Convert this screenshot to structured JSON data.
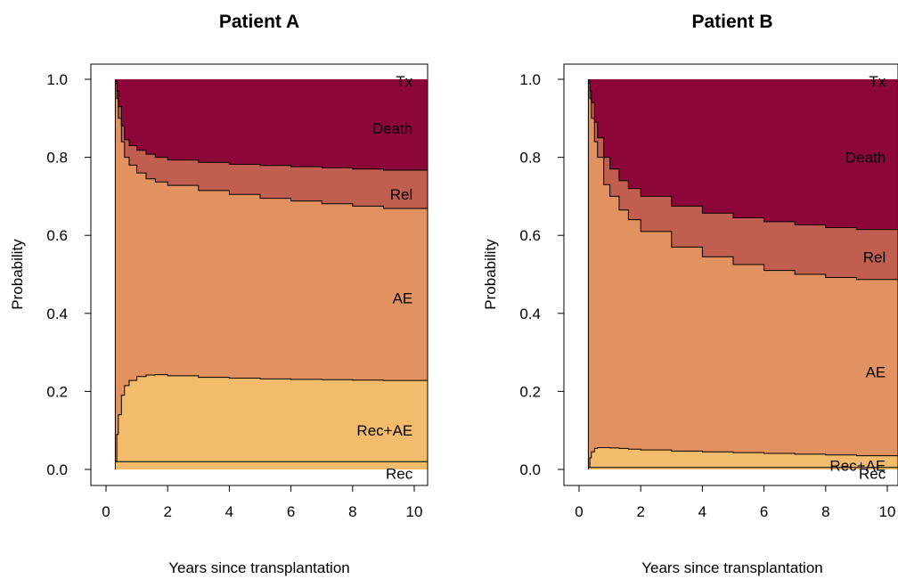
{
  "chart_data": [
    {
      "type": "area",
      "title": "Patient A",
      "xlabel": "Years since transplantation",
      "ylabel": "Probability",
      "xlim": [
        0,
        10.4
      ],
      "ylim": [
        0,
        1
      ],
      "xticks": [
        "0",
        "2",
        "4",
        "6",
        "8",
        "10"
      ],
      "yticks": [
        "0.0",
        "0.2",
        "0.4",
        "0.6",
        "0.8",
        "1.0"
      ],
      "start_x": 0.3,
      "x": [
        0.3,
        0.35,
        0.4,
        0.5,
        0.6,
        0.75,
        1.0,
        1.3,
        1.6,
        2.0,
        3.0,
        4.0,
        5.0,
        6.0,
        7.0,
        8.0,
        9.0,
        10.4
      ],
      "cumulative_boundaries": [
        {
          "name": "Rec",
          "values": [
            0.02,
            0.02,
            0.02,
            0.02,
            0.02,
            0.02,
            0.02,
            0.02,
            0.02,
            0.02,
            0.02,
            0.02,
            0.02,
            0.02,
            0.02,
            0.02,
            0.02,
            0.02
          ]
        },
        {
          "name": "Rec+AE",
          "values": [
            0.02,
            0.09,
            0.14,
            0.19,
            0.215,
            0.228,
            0.238,
            0.242,
            0.243,
            0.24,
            0.236,
            0.234,
            0.232,
            0.231,
            0.23,
            0.229,
            0.228,
            0.226
          ]
        },
        {
          "name": "AE",
          "values": [
            0.99,
            0.95,
            0.9,
            0.84,
            0.8,
            0.78,
            0.76,
            0.745,
            0.737,
            0.728,
            0.715,
            0.705,
            0.695,
            0.688,
            0.681,
            0.675,
            0.669,
            0.662
          ]
        },
        {
          "name": "Rel",
          "values": [
            0.995,
            0.97,
            0.93,
            0.88,
            0.845,
            0.83,
            0.818,
            0.808,
            0.8,
            0.793,
            0.787,
            0.782,
            0.779,
            0.776,
            0.773,
            0.77,
            0.767,
            0.763
          ]
        },
        {
          "name": "Death",
          "values": [
            1.0,
            1.0,
            1.0,
            1.0,
            1.0,
            1.0,
            1.0,
            1.0,
            1.0,
            1.0,
            1.0,
            1.0,
            1.0,
            1.0,
            1.0,
            1.0,
            1.0,
            1.0
          ]
        }
      ],
      "state_labels": [
        {
          "text": "Tx",
          "x": 9.95,
          "y": 0.995
        },
        {
          "text": "Death",
          "x": 9.95,
          "y": 0.875
        },
        {
          "text": "Rel",
          "x": 9.95,
          "y": 0.705
        },
        {
          "text": "AE",
          "x": 9.95,
          "y": 0.44
        },
        {
          "text": "Rec+AE",
          "x": 9.95,
          "y": 0.1
        },
        {
          "text": "Rec",
          "x": 9.95,
          "y": -0.01
        }
      ],
      "colors": {
        "Rec": "#f3bc6c",
        "Rec+AE": "#f3bc6c",
        "AE": "#e19260",
        "Rel": "#c05e50",
        "Death": "#8c0639",
        "Tx": "#8c0639"
      }
    },
    {
      "type": "area",
      "title": "Patient B",
      "xlabel": "Years since transplantation",
      "ylabel": "Probability",
      "xlim": [
        0,
        10.4
      ],
      "ylim": [
        0,
        1
      ],
      "xticks": [
        "0",
        "2",
        "4",
        "6",
        "8",
        "10"
      ],
      "yticks": [
        "0.0",
        "0.2",
        "0.4",
        "0.6",
        "0.8",
        "1.0"
      ],
      "start_x": 0.3,
      "x": [
        0.3,
        0.35,
        0.4,
        0.5,
        0.6,
        0.8,
        1.0,
        1.3,
        1.6,
        2.0,
        3.0,
        4.0,
        5.0,
        6.0,
        7.0,
        8.0,
        9.0,
        10.4
      ],
      "cumulative_boundaries": [
        {
          "name": "Rec",
          "values": [
            0.005,
            0.005,
            0.005,
            0.005,
            0.005,
            0.005,
            0.005,
            0.005,
            0.005,
            0.005,
            0.005,
            0.005,
            0.005,
            0.005,
            0.005,
            0.005,
            0.005,
            0.005
          ]
        },
        {
          "name": "Rec+AE",
          "values": [
            0.005,
            0.03,
            0.045,
            0.054,
            0.056,
            0.056,
            0.055,
            0.054,
            0.052,
            0.05,
            0.047,
            0.045,
            0.043,
            0.041,
            0.039,
            0.037,
            0.035,
            0.033
          ]
        },
        {
          "name": "AE",
          "values": [
            0.99,
            0.95,
            0.9,
            0.84,
            0.8,
            0.73,
            0.7,
            0.665,
            0.64,
            0.61,
            0.57,
            0.545,
            0.525,
            0.51,
            0.5,
            0.492,
            0.487,
            0.48
          ]
        },
        {
          "name": "Rel",
          "values": [
            0.995,
            0.97,
            0.94,
            0.89,
            0.85,
            0.8,
            0.77,
            0.74,
            0.72,
            0.7,
            0.675,
            0.657,
            0.645,
            0.635,
            0.627,
            0.62,
            0.615,
            0.61
          ]
        },
        {
          "name": "Death",
          "values": [
            1.0,
            1.0,
            1.0,
            1.0,
            1.0,
            1.0,
            1.0,
            1.0,
            1.0,
            1.0,
            1.0,
            1.0,
            1.0,
            1.0,
            1.0,
            1.0,
            1.0,
            1.0
          ]
        }
      ],
      "state_labels": [
        {
          "text": "Tx",
          "x": 9.95,
          "y": 0.995
        },
        {
          "text": "Death",
          "x": 9.95,
          "y": 0.8
        },
        {
          "text": "Rel",
          "x": 9.95,
          "y": 0.545
        },
        {
          "text": "AE",
          "x": 9.95,
          "y": 0.25
        },
        {
          "text": "Rec+AE",
          "x": 9.95,
          "y": 0.01
        },
        {
          "text": "Rec",
          "x": 9.95,
          "y": -0.01
        }
      ],
      "colors": {
        "Rec": "#f3bc6c",
        "Rec+AE": "#f3bc6c",
        "AE": "#e19260",
        "Rel": "#c05e50",
        "Death": "#8c0639",
        "Tx": "#8c0639"
      }
    }
  ]
}
